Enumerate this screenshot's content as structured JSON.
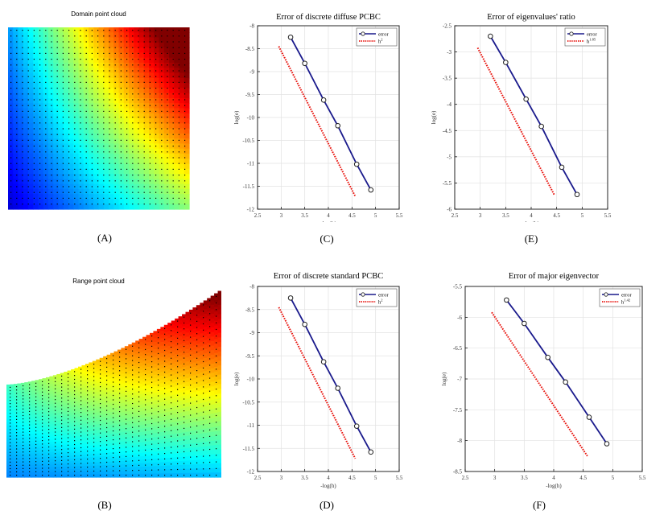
{
  "panels": {
    "A": {
      "title": "Domain point cloud",
      "caption": "(A)"
    },
    "B": {
      "title": "Range point cloud",
      "caption": "(B)"
    }
  },
  "chart_data": [
    {
      "id": "C",
      "caption": "(C)",
      "type": "line",
      "title": "Error of discrete diffuse PCBC",
      "xlabel": "-log(h)",
      "ylabel": "log(e)",
      "xlim": [
        2.5,
        5.5
      ],
      "ylim": [
        -12,
        -8
      ],
      "xticks": [
        "2.5",
        "3",
        "3.5",
        "4",
        "4.5",
        "5",
        "5.5"
      ],
      "yticks": [
        "-12",
        "-11.5",
        "-11",
        "-10.5",
        "-10",
        "-9.5",
        "-9",
        "-8.5",
        "-8"
      ],
      "grid": true,
      "legend_position": "top-right",
      "series": [
        {
          "name": "error",
          "style": "line-markers",
          "color": "#1a1a8c",
          "x": [
            3.2,
            3.5,
            3.9,
            4.2,
            4.6,
            4.9
          ],
          "y": [
            -8.25,
            -8.82,
            -9.62,
            -10.18,
            -11.02,
            -11.58
          ]
        },
        {
          "name": "h",
          "superscript": "2",
          "style": "dotted",
          "color": "#e8120c",
          "x": [
            2.95,
            4.57
          ],
          "y": [
            -8.45,
            -11.72
          ]
        }
      ]
    },
    {
      "id": "D",
      "caption": "(D)",
      "type": "line",
      "title": "Error of discrete standard PCBC",
      "xlabel": "-log(h)",
      "ylabel": "log(e)",
      "xlim": [
        2.5,
        5.5
      ],
      "ylim": [
        -12,
        -8
      ],
      "xticks": [
        "2.5",
        "3",
        "3.5",
        "4",
        "4.5",
        "5",
        "5.5"
      ],
      "yticks": [
        "-12",
        "-11.5",
        "-11",
        "-10.5",
        "-10",
        "-9.5",
        "-9",
        "-8.5",
        "-8"
      ],
      "grid": true,
      "legend_position": "top-right",
      "series": [
        {
          "name": "error",
          "style": "line-markers",
          "color": "#1a1a8c",
          "x": [
            3.2,
            3.5,
            3.9,
            4.2,
            4.6,
            4.9
          ],
          "y": [
            -8.25,
            -8.82,
            -9.63,
            -10.2,
            -11.02,
            -11.58
          ]
        },
        {
          "name": "h",
          "superscript": "2",
          "style": "dotted",
          "color": "#e8120c",
          "x": [
            2.95,
            4.57
          ],
          "y": [
            -8.45,
            -11.72
          ]
        }
      ]
    },
    {
      "id": "E",
      "caption": "(E)",
      "type": "line",
      "title": "Error of eigenvalues' ratio",
      "xlabel": "-log(h)",
      "ylabel": "log(e)",
      "xlim": [
        2.5,
        5.5
      ],
      "ylim": [
        -6,
        -2.5
      ],
      "xticks": [
        "2.5",
        "3",
        "3.5",
        "4",
        "4.5",
        "5",
        "5.5"
      ],
      "yticks": [
        "-6",
        "-5.5",
        "-5",
        "-4.5",
        "-4",
        "-3.5",
        "-3",
        "-2.5"
      ],
      "grid": true,
      "legend_position": "top-right",
      "series": [
        {
          "name": "error",
          "style": "line-markers",
          "color": "#1a1a8c",
          "x": [
            3.2,
            3.5,
            3.9,
            4.2,
            4.6,
            4.9
          ],
          "y": [
            -2.7,
            -3.2,
            -3.9,
            -4.42,
            -5.2,
            -5.72
          ]
        },
        {
          "name": "h",
          "superscript": "1.85",
          "style": "dotted",
          "color": "#e8120c",
          "x": [
            2.95,
            4.45
          ],
          "y": [
            -2.92,
            -5.72
          ]
        }
      ]
    },
    {
      "id": "F",
      "caption": "(F)",
      "type": "line",
      "title": "Error of major eigenvector",
      "xlabel": "-log(h)",
      "ylabel": "log(e)",
      "xlim": [
        2.5,
        5.5
      ],
      "ylim": [
        -8.5,
        -5.5
      ],
      "xticks": [
        "2.5",
        "3",
        "3.5",
        "4",
        "4.5",
        "5",
        "5.5"
      ],
      "yticks": [
        "-8.5",
        "-8",
        "-7.5",
        "-7",
        "-6.5",
        "-6",
        "-5.5"
      ],
      "grid": true,
      "legend_position": "top-right",
      "series": [
        {
          "name": "error",
          "style": "line-markers",
          "color": "#1a1a8c",
          "x": [
            3.2,
            3.5,
            3.9,
            4.2,
            4.6,
            4.9
          ],
          "y": [
            -5.72,
            -6.1,
            -6.65,
            -7.05,
            -7.62,
            -8.05
          ]
        },
        {
          "name": "h",
          "superscript": "1.42",
          "style": "dotted",
          "color": "#e8120c",
          "x": [
            2.95,
            4.57
          ],
          "y": [
            -5.92,
            -8.25
          ]
        }
      ]
    }
  ]
}
